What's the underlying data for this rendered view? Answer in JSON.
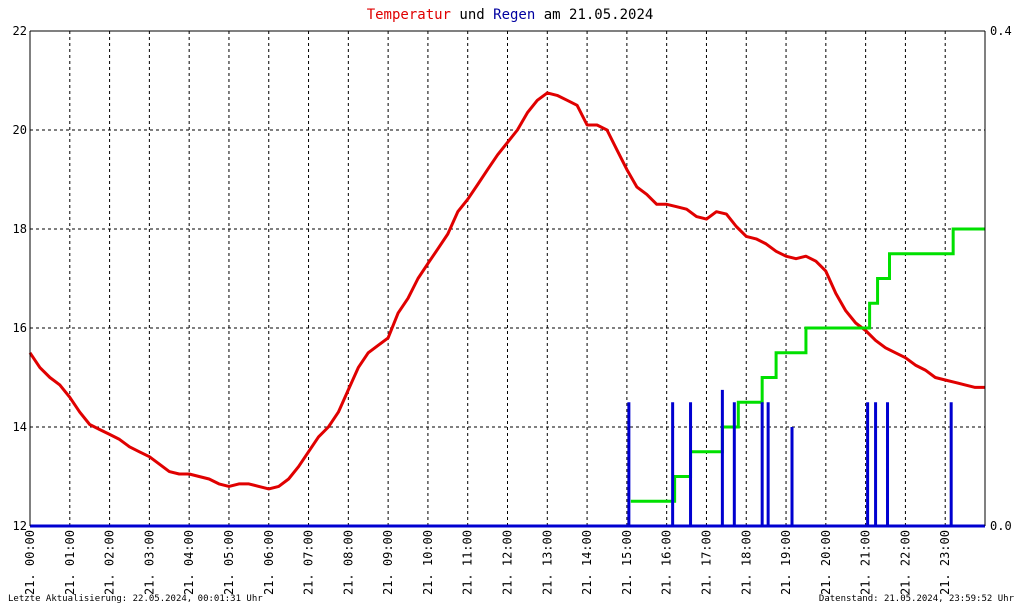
{
  "title": {
    "part1": "Temperatur",
    "part2": " und ",
    "part3": "Regen",
    "part4": " am 21.05.2024",
    "colors": {
      "part1": "#e00000",
      "part2": "#000000",
      "part3": "#0000a0",
      "part4": "#000000"
    }
  },
  "footer": {
    "left": "Letzte Aktualisierung: 22.05.2024, 00:01:31 Uhr",
    "right": "Datenstand: 21.05.2024, 23:59:52 Uhr"
  },
  "chart_data": {
    "type": "line",
    "x_unit": "hour of day",
    "xlim": [
      0,
      24
    ],
    "x_ticks": [
      {
        "hour": 0,
        "label": "21. 00:00"
      },
      {
        "hour": 1,
        "label": "21. 01:00"
      },
      {
        "hour": 2,
        "label": "21. 02:00"
      },
      {
        "hour": 3,
        "label": "21. 03:00"
      },
      {
        "hour": 4,
        "label": "21. 04:00"
      },
      {
        "hour": 5,
        "label": "21. 05:00"
      },
      {
        "hour": 6,
        "label": "21. 06:00"
      },
      {
        "hour": 7,
        "label": "21. 07:00"
      },
      {
        "hour": 8,
        "label": "21. 08:00"
      },
      {
        "hour": 9,
        "label": "21. 09:00"
      },
      {
        "hour": 10,
        "label": "21. 10:00"
      },
      {
        "hour": 11,
        "label": "21. 11:00"
      },
      {
        "hour": 12,
        "label": "21. 12:00"
      },
      {
        "hour": 13,
        "label": "21. 13:00"
      },
      {
        "hour": 14,
        "label": "21. 14:00"
      },
      {
        "hour": 15,
        "label": "21. 15:00"
      },
      {
        "hour": 16,
        "label": "21. 16:00"
      },
      {
        "hour": 17,
        "label": "21. 17:00"
      },
      {
        "hour": 18,
        "label": "21. 18:00"
      },
      {
        "hour": 19,
        "label": "21. 19:00"
      },
      {
        "hour": 20,
        "label": "21. 20:00"
      },
      {
        "hour": 21,
        "label": "21. 21:00"
      },
      {
        "hour": 22,
        "label": "21. 22:00"
      },
      {
        "hour": 23,
        "label": "21. 23:00"
      }
    ],
    "y_left": {
      "lim": [
        12,
        22
      ],
      "ticks": [
        12,
        14,
        16,
        18,
        20,
        22
      ]
    },
    "y_right": {
      "lim": [
        0,
        0.4
      ],
      "ticks": [
        {
          "value": 0,
          "label": "0.0"
        },
        {
          "value": 0.4,
          "label": "0.4"
        }
      ]
    },
    "grid": true,
    "series": [
      {
        "key": "temperature",
        "axis": "left",
        "color": "#e00000",
        "points": [
          [
            0.0,
            15.5
          ],
          [
            0.25,
            15.2
          ],
          [
            0.5,
            15.0
          ],
          [
            0.75,
            14.85
          ],
          [
            1.0,
            14.6
          ],
          [
            1.25,
            14.3
          ],
          [
            1.5,
            14.05
          ],
          [
            1.75,
            13.95
          ],
          [
            2.0,
            13.85
          ],
          [
            2.25,
            13.75
          ],
          [
            2.5,
            13.6
          ],
          [
            2.75,
            13.5
          ],
          [
            3.0,
            13.4
          ],
          [
            3.25,
            13.25
          ],
          [
            3.5,
            13.1
          ],
          [
            3.75,
            13.05
          ],
          [
            4.0,
            13.05
          ],
          [
            4.25,
            13.0
          ],
          [
            4.5,
            12.95
          ],
          [
            4.75,
            12.85
          ],
          [
            5.0,
            12.8
          ],
          [
            5.25,
            12.85
          ],
          [
            5.5,
            12.85
          ],
          [
            5.75,
            12.8
          ],
          [
            6.0,
            12.75
          ],
          [
            6.25,
            12.8
          ],
          [
            6.5,
            12.95
          ],
          [
            6.75,
            13.2
          ],
          [
            7.0,
            13.5
          ],
          [
            7.25,
            13.8
          ],
          [
            7.5,
            14.0
          ],
          [
            7.75,
            14.3
          ],
          [
            8.0,
            14.75
          ],
          [
            8.25,
            15.2
          ],
          [
            8.5,
            15.5
          ],
          [
            8.75,
            15.65
          ],
          [
            9.0,
            15.8
          ],
          [
            9.25,
            16.3
          ],
          [
            9.5,
            16.6
          ],
          [
            9.75,
            17.0
          ],
          [
            10.0,
            17.3
          ],
          [
            10.25,
            17.6
          ],
          [
            10.5,
            17.9
          ],
          [
            10.75,
            18.35
          ],
          [
            11.0,
            18.6
          ],
          [
            11.25,
            18.9
          ],
          [
            11.5,
            19.2
          ],
          [
            11.75,
            19.5
          ],
          [
            12.0,
            19.75
          ],
          [
            12.25,
            20.0
          ],
          [
            12.5,
            20.35
          ],
          [
            12.75,
            20.6
          ],
          [
            13.0,
            20.75
          ],
          [
            13.25,
            20.7
          ],
          [
            13.5,
            20.6
          ],
          [
            13.75,
            20.5
          ],
          [
            14.0,
            20.1
          ],
          [
            14.25,
            20.1
          ],
          [
            14.5,
            20.0
          ],
          [
            14.75,
            19.6
          ],
          [
            15.0,
            19.2
          ],
          [
            15.25,
            18.85
          ],
          [
            15.5,
            18.7
          ],
          [
            15.75,
            18.5
          ],
          [
            16.0,
            18.5
          ],
          [
            16.25,
            18.45
          ],
          [
            16.5,
            18.4
          ],
          [
            16.75,
            18.25
          ],
          [
            17.0,
            18.2
          ],
          [
            17.25,
            18.35
          ],
          [
            17.5,
            18.3
          ],
          [
            17.75,
            18.05
          ],
          [
            18.0,
            17.85
          ],
          [
            18.25,
            17.8
          ],
          [
            18.5,
            17.7
          ],
          [
            18.75,
            17.55
          ],
          [
            19.0,
            17.45
          ],
          [
            19.25,
            17.4
          ],
          [
            19.5,
            17.45
          ],
          [
            19.75,
            17.35
          ],
          [
            20.0,
            17.15
          ],
          [
            20.25,
            16.7
          ],
          [
            20.5,
            16.35
          ],
          [
            20.75,
            16.1
          ],
          [
            21.0,
            15.95
          ],
          [
            21.25,
            15.75
          ],
          [
            21.5,
            15.6
          ],
          [
            21.75,
            15.5
          ],
          [
            22.0,
            15.4
          ],
          [
            22.25,
            15.25
          ],
          [
            22.5,
            15.15
          ],
          [
            22.75,
            15.0
          ],
          [
            23.0,
            14.95
          ],
          [
            23.25,
            14.9
          ],
          [
            23.5,
            14.85
          ],
          [
            23.75,
            14.8
          ],
          [
            24.0,
            14.8
          ]
        ]
      },
      {
        "key": "rain_cumulative",
        "axis": "right",
        "color": "#00e000",
        "steps": [
          [
            15.1,
            0.02
          ],
          [
            16.2,
            0.04
          ],
          [
            16.6,
            0.06
          ],
          [
            17.4,
            0.08
          ],
          [
            17.8,
            0.1
          ],
          [
            18.4,
            0.12
          ],
          [
            18.75,
            0.14
          ],
          [
            19.5,
            0.16
          ],
          [
            21.1,
            0.18
          ],
          [
            21.3,
            0.2
          ],
          [
            21.6,
            0.22
          ],
          [
            23.2,
            0.24
          ],
          [
            24.0,
            0.24
          ]
        ]
      },
      {
        "key": "rain_interval",
        "axis": "right",
        "color": "#0000d0",
        "bars": [
          [
            15.05,
            0.1
          ],
          [
            16.15,
            0.1
          ],
          [
            16.6,
            0.1
          ],
          [
            17.4,
            0.11
          ],
          [
            17.7,
            0.1
          ],
          [
            18.4,
            0.1
          ],
          [
            18.55,
            0.1
          ],
          [
            19.15,
            0.08
          ],
          [
            21.05,
            0.1
          ],
          [
            21.25,
            0.1
          ],
          [
            21.55,
            0.1
          ],
          [
            23.15,
            0.1
          ]
        ]
      }
    ]
  }
}
